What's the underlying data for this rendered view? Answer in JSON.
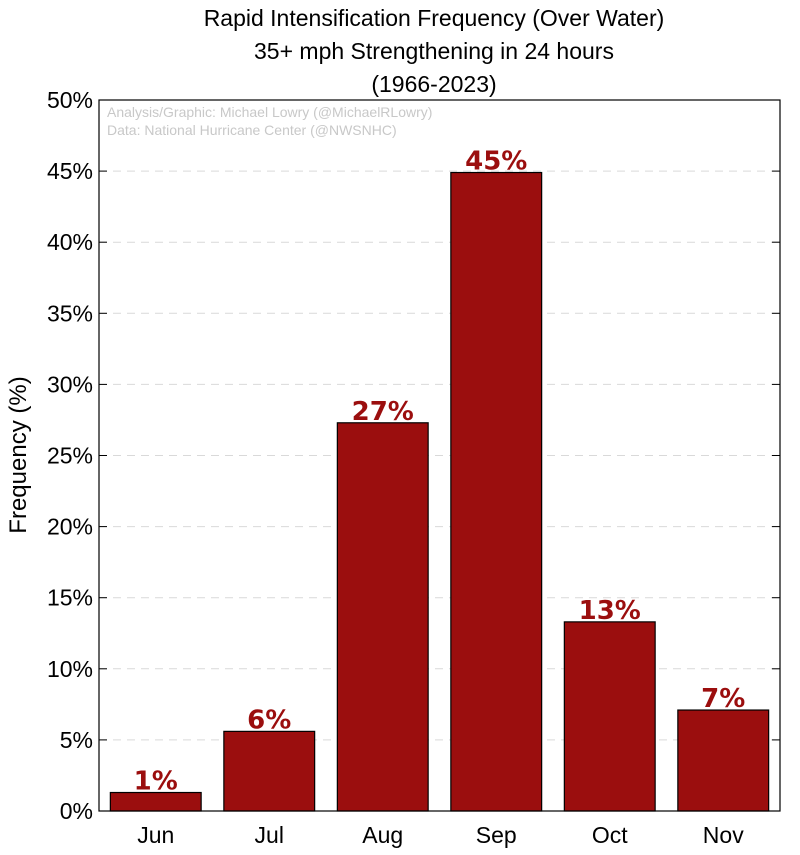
{
  "chart_data": {
    "type": "bar",
    "title_lines": [
      "Rapid Intensification Frequency (Over Water)",
      "35+ mph Strengthening in 24 hours",
      "(1966-2023)"
    ],
    "credits": [
      "Analysis/Graphic: Michael Lowry (@MichaelRLowry)",
      "Data: National Hurricane Center (@NWSNHC)"
    ],
    "ylabel": "Frequency (%)",
    "xlabel": "",
    "categories": [
      "Jun",
      "Jul",
      "Aug",
      "Sep",
      "Oct",
      "Nov"
    ],
    "values": [
      1.3,
      5.6,
      27.3,
      44.9,
      13.3,
      7.1
    ],
    "data_labels": [
      "1%",
      "6%",
      "27%",
      "45%",
      "13%",
      "7%"
    ],
    "ylim": [
      0,
      50
    ],
    "yticks": [
      0,
      5,
      10,
      15,
      20,
      25,
      30,
      35,
      40,
      45,
      50
    ],
    "ytick_labels": [
      "0%",
      "5%",
      "10%",
      "15%",
      "20%",
      "25%",
      "30%",
      "35%",
      "40%",
      "45%",
      "50%"
    ],
    "grid": true,
    "bar_color": "#9b0e0e",
    "label_color": "#9b0e0e"
  }
}
